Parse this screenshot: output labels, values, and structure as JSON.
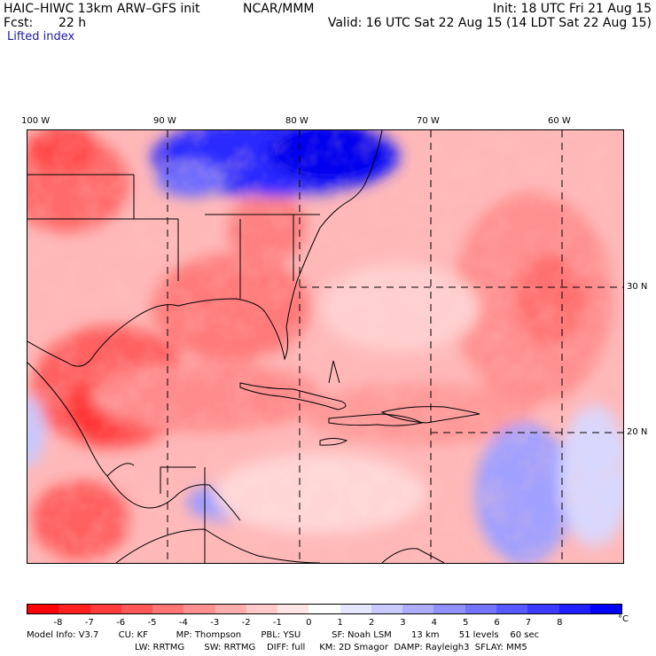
{
  "header": {
    "model": "HAIC–HIWC 13km ARW–GFS init",
    "org": "NCAR/MMM",
    "init": "Init: 18 UTC Fri 21 Aug 15",
    "fcst_label": "Fcst:",
    "fcst_value": "22 h",
    "valid": "Valid: 16 UTC Sat 22 Aug 15 (14 LDT Sat 22 Aug 15)",
    "field": "Lifted index"
  },
  "map": {
    "lon_labels": [
      "100 W",
      "90 W",
      "80 W",
      "70 W",
      "60 W"
    ],
    "lat_labels": [
      "30 N",
      "20 N"
    ]
  },
  "colorbar": {
    "unit": "°C",
    "labels": [
      "-8",
      "-7",
      "-6",
      "-5",
      "-4",
      "-3",
      "-2",
      "-1",
      "0",
      "1",
      "2",
      "3",
      "4",
      "5",
      "6",
      "7",
      "8"
    ],
    "colors": [
      "#ff0000",
      "#ff1f1f",
      "#ff3b3b",
      "#ff5858",
      "#ff7474",
      "#ff9191",
      "#ffadad",
      "#ffcaca",
      "#ffe6e6",
      "#ffffff",
      "#e6e6ff",
      "#cacaff",
      "#adadff",
      "#9191ff",
      "#7474ff",
      "#5858ff",
      "#3b3bff",
      "#1f1fff",
      "#0000ff"
    ]
  },
  "footer": {
    "line1": "Model Info: V3.7       CU: KF          MP: Thompson       PBL: YSU           SF: Noah LSM       13 km       51 levels    60 sec",
    "line2": "LW: RRTMG       SW: RRTMG    DIFF: full     KM: 2D Smagor  DAMP: Rayleigh3  SFLAY: MM5"
  }
}
